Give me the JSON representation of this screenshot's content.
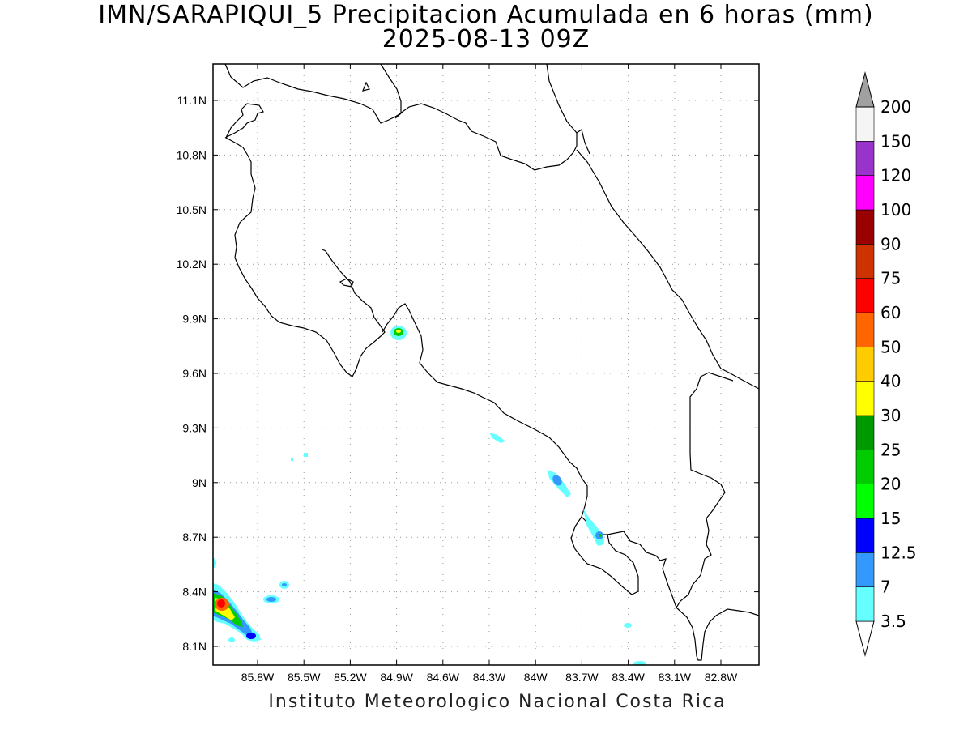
{
  "title": {
    "line1": "IMN/SARAPIQUI_5 Precipitacion Acumulada en 6 horas (mm)",
    "line2": "2025-08-13 09Z"
  },
  "footer": "Instituto Meteorologico Nacional Costa Rica",
  "map": {
    "lon_ticks": [
      "85.8W",
      "85.5W",
      "85.2W",
      "84.9W",
      "84.6W",
      "84.3W",
      "84W",
      "83.7W",
      "83.4W",
      "83.1W",
      "82.8W"
    ],
    "lat_ticks": [
      "11.1N",
      "10.8N",
      "10.5N",
      "10.2N",
      "9.9N",
      "9.6N",
      "9.3N",
      "9N",
      "8.7N",
      "8.4N",
      "8.1N"
    ],
    "grid": true
  },
  "colorbar": {
    "labels": [
      "3.5",
      "7",
      "12.5",
      "15",
      "20",
      "25",
      "30",
      "40",
      "50",
      "60",
      "75",
      "90",
      "100",
      "120",
      "150",
      "200"
    ],
    "colors": [
      "#ffffff",
      "#66ffff",
      "#3399ff",
      "#0000ff",
      "#00ff00",
      "#00cc00",
      "#009900",
      "#ffff00",
      "#ffcc00",
      "#ff6600",
      "#ff0000",
      "#cc3300",
      "#990000",
      "#ff00ff",
      "#9933cc",
      "#f5f5f5",
      "#a0a0a0"
    ]
  }
}
